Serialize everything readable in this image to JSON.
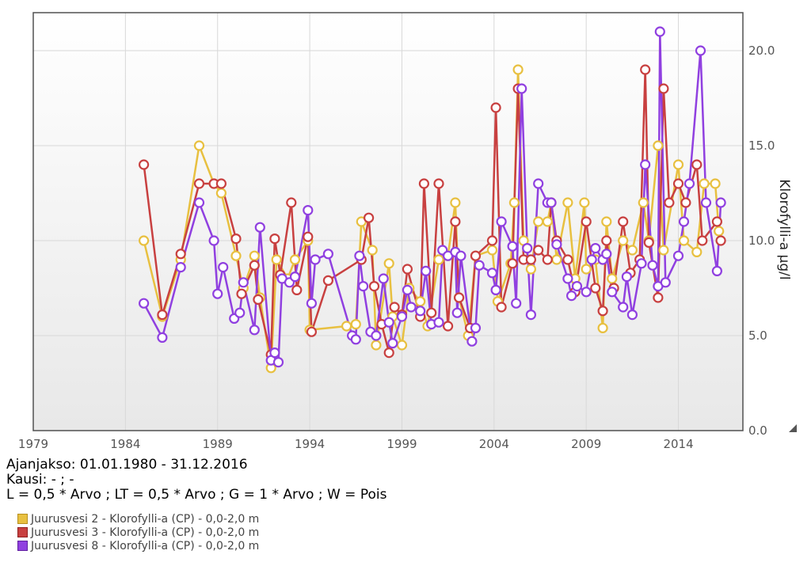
{
  "chart_data": {
    "type": "line",
    "xlim": [
      1979,
      2017.5
    ],
    "ylim": [
      0,
      22
    ],
    "x_ticks": [
      1979,
      1984,
      1989,
      1994,
      1999,
      2004,
      2009,
      2014
    ],
    "y_ticks": [
      0,
      5,
      10,
      15,
      20
    ],
    "x_tick_labels": [
      "1979",
      "1984",
      "1989",
      "1994",
      "1999",
      "2004",
      "2009",
      "2014"
    ],
    "y_tick_labels": [
      "0.0",
      "5.0",
      "10.0",
      "15.0",
      "20.0"
    ],
    "ylabel": "Klorofylli-a µg/l",
    "grid": true,
    "series": [
      {
        "name": "Juurusvesi 2 - Klorofylli-a (CP) - 0,0-2,0 m",
        "color": "#e8c040",
        "points": [
          [
            1985.0,
            10.0
          ],
          [
            1986.0,
            6.0
          ],
          [
            1987.0,
            9.0
          ],
          [
            1988.0,
            15.0
          ],
          [
            1988.8,
            13.0
          ],
          [
            1989.2,
            12.5
          ],
          [
            1990.0,
            9.2
          ],
          [
            1990.4,
            7.5
          ],
          [
            1991.0,
            9.2
          ],
          [
            1991.3,
            7.0
          ],
          [
            1991.9,
            3.3
          ],
          [
            1992.2,
            9.0
          ],
          [
            1992.8,
            8.0
          ],
          [
            1993.2,
            9.0
          ],
          [
            1993.9,
            10.0
          ],
          [
            1994.0,
            5.3
          ],
          [
            1996.0,
            5.5
          ],
          [
            1996.5,
            5.6
          ],
          [
            1996.8,
            11.0
          ],
          [
            1997.4,
            9.5
          ],
          [
            1997.6,
            4.5
          ],
          [
            1998.3,
            8.8
          ],
          [
            1998.5,
            6.0
          ],
          [
            1999.0,
            4.5
          ],
          [
            1999.4,
            7.5
          ],
          [
            2000.0,
            6.8
          ],
          [
            2000.4,
            5.5
          ],
          [
            2001.0,
            9.0
          ],
          [
            2001.5,
            9.2
          ],
          [
            2001.9,
            12.0
          ],
          [
            2002.1,
            7.0
          ],
          [
            2002.6,
            5.0
          ],
          [
            2003.0,
            9.2
          ],
          [
            2003.9,
            9.5
          ],
          [
            2004.2,
            6.8
          ],
          [
            2004.9,
            8.8
          ],
          [
            2005.1,
            12.0
          ],
          [
            2005.3,
            19.0
          ],
          [
            2005.6,
            10.0
          ],
          [
            2006.0,
            8.5
          ],
          [
            2006.4,
            11.0
          ],
          [
            2006.9,
            11.0
          ],
          [
            2007.1,
            12.0
          ],
          [
            2007.4,
            9.0
          ],
          [
            2008.0,
            12.0
          ],
          [
            2008.4,
            8.0
          ],
          [
            2008.9,
            12.0
          ],
          [
            2009.0,
            8.5
          ],
          [
            2009.5,
            9.0
          ],
          [
            2009.9,
            5.4
          ],
          [
            2010.1,
            11.0
          ],
          [
            2010.4,
            8.0
          ],
          [
            2011.0,
            10.0
          ],
          [
            2011.5,
            9.5
          ],
          [
            2012.1,
            12.0
          ],
          [
            2012.4,
            10.0
          ],
          [
            2012.9,
            15.0
          ],
          [
            2013.2,
            9.5
          ],
          [
            2014.0,
            14.0
          ],
          [
            2014.3,
            10.0
          ],
          [
            2015.0,
            9.4
          ],
          [
            2015.4,
            13.0
          ],
          [
            2016.0,
            13.0
          ],
          [
            2016.2,
            10.5
          ]
        ]
      },
      {
        "name": "Juurusvesi 3 - Klorofylli-a (CP) - 0,0-2,0 m",
        "color": "#c84040",
        "points": [
          [
            1985.0,
            14.0
          ],
          [
            1986.0,
            6.1
          ],
          [
            1987.0,
            9.3
          ],
          [
            1988.0,
            13.0
          ],
          [
            1988.8,
            13.0
          ],
          [
            1989.2,
            13.0
          ],
          [
            1990.0,
            10.1
          ],
          [
            1990.3,
            7.2
          ],
          [
            1991.0,
            8.7
          ],
          [
            1991.2,
            6.9
          ],
          [
            1991.9,
            4.0
          ],
          [
            1992.1,
            10.1
          ],
          [
            1992.4,
            8.2
          ],
          [
            1993.0,
            12.0
          ],
          [
            1993.3,
            7.4
          ],
          [
            1993.9,
            10.2
          ],
          [
            1994.1,
            5.2
          ],
          [
            1995.0,
            7.9
          ],
          [
            1996.8,
            9.0
          ],
          [
            1997.2,
            11.2
          ],
          [
            1997.5,
            7.6
          ],
          [
            1997.9,
            5.6
          ],
          [
            1998.3,
            4.1
          ],
          [
            1998.6,
            6.5
          ],
          [
            1999.0,
            6.1
          ],
          [
            1999.3,
            8.5
          ],
          [
            2000.0,
            6.0
          ],
          [
            2000.2,
            13.0
          ],
          [
            2000.6,
            6.2
          ],
          [
            2001.0,
            13.0
          ],
          [
            2001.5,
            5.5
          ],
          [
            2001.9,
            11.0
          ],
          [
            2002.1,
            7.0
          ],
          [
            2002.7,
            5.4
          ],
          [
            2003.0,
            9.2
          ],
          [
            2003.9,
            10.0
          ],
          [
            2004.1,
            17.0
          ],
          [
            2004.4,
            6.5
          ],
          [
            2005.0,
            8.8
          ],
          [
            2005.3,
            18.0
          ],
          [
            2005.6,
            9.0
          ],
          [
            2006.0,
            9.0
          ],
          [
            2006.4,
            9.5
          ],
          [
            2006.9,
            9.0
          ],
          [
            2007.1,
            12.0
          ],
          [
            2007.4,
            10.0
          ],
          [
            2008.0,
            9.0
          ],
          [
            2008.4,
            7.3
          ],
          [
            2009.0,
            11.0
          ],
          [
            2009.5,
            7.5
          ],
          [
            2009.9,
            6.3
          ],
          [
            2010.1,
            10.0
          ],
          [
            2010.5,
            7.5
          ],
          [
            2011.0,
            11.0
          ],
          [
            2011.4,
            8.3
          ],
          [
            2011.9,
            9.0
          ],
          [
            2012.2,
            19.0
          ],
          [
            2012.4,
            9.9
          ],
          [
            2012.9,
            7.0
          ],
          [
            2013.2,
            18.0
          ],
          [
            2013.5,
            12.0
          ],
          [
            2014.0,
            13.0
          ],
          [
            2014.4,
            12.0
          ],
          [
            2015.0,
            14.0
          ],
          [
            2015.3,
            10.0
          ],
          [
            2016.1,
            11.0
          ],
          [
            2016.3,
            10.0
          ]
        ]
      },
      {
        "name": "Juurusvesi 8 - Klorofylli-a (CP) - 0,0-2,0 m",
        "color": "#9040e0",
        "points": [
          [
            1985.0,
            6.7
          ],
          [
            1986.0,
            4.9
          ],
          [
            1987.0,
            8.6
          ],
          [
            1988.0,
            12.0
          ],
          [
            1988.8,
            10.0
          ],
          [
            1989.0,
            7.2
          ],
          [
            1989.3,
            8.6
          ],
          [
            1989.9,
            5.9
          ],
          [
            1990.2,
            6.2
          ],
          [
            1990.4,
            7.8
          ],
          [
            1991.0,
            5.3
          ],
          [
            1991.3,
            10.7
          ],
          [
            1991.9,
            3.7
          ],
          [
            1992.1,
            4.1
          ],
          [
            1992.3,
            3.6
          ],
          [
            1992.5,
            8.0
          ],
          [
            1992.9,
            7.8
          ],
          [
            1993.2,
            8.1
          ],
          [
            1993.9,
            11.6
          ],
          [
            1994.1,
            6.7
          ],
          [
            1994.3,
            9.0
          ],
          [
            1995.0,
            9.3
          ],
          [
            1996.3,
            5.0
          ],
          [
            1996.5,
            4.8
          ],
          [
            1996.7,
            9.2
          ],
          [
            1996.9,
            7.6
          ],
          [
            1997.3,
            5.2
          ],
          [
            1997.6,
            5.0
          ],
          [
            1998.0,
            8.0
          ],
          [
            1998.3,
            5.7
          ],
          [
            1998.5,
            4.6
          ],
          [
            1999.0,
            6.0
          ],
          [
            1999.3,
            7.4
          ],
          [
            1999.5,
            6.5
          ],
          [
            2000.0,
            6.3
          ],
          [
            2000.3,
            8.4
          ],
          [
            2000.6,
            5.6
          ],
          [
            2001.0,
            5.7
          ],
          [
            2001.2,
            9.5
          ],
          [
            2001.5,
            9.2
          ],
          [
            2001.9,
            9.4
          ],
          [
            2002.0,
            6.2
          ],
          [
            2002.2,
            9.2
          ],
          [
            2002.8,
            4.7
          ],
          [
            2003.0,
            5.4
          ],
          [
            2003.2,
            8.7
          ],
          [
            2003.9,
            8.3
          ],
          [
            2004.1,
            7.4
          ],
          [
            2004.4,
            11.0
          ],
          [
            2005.0,
            9.7
          ],
          [
            2005.2,
            6.7
          ],
          [
            2005.5,
            18.0
          ],
          [
            2005.8,
            9.6
          ],
          [
            2006.0,
            6.1
          ],
          [
            2006.4,
            13.0
          ],
          [
            2006.9,
            12.0
          ],
          [
            2007.1,
            12.0
          ],
          [
            2007.4,
            9.8
          ],
          [
            2008.0,
            8.0
          ],
          [
            2008.2,
            7.1
          ],
          [
            2008.5,
            7.6
          ],
          [
            2009.0,
            7.3
          ],
          [
            2009.3,
            9.0
          ],
          [
            2009.5,
            9.6
          ],
          [
            2009.9,
            9.0
          ],
          [
            2010.1,
            9.3
          ],
          [
            2010.4,
            7.3
          ],
          [
            2011.0,
            6.5
          ],
          [
            2011.2,
            8.1
          ],
          [
            2011.5,
            6.1
          ],
          [
            2012.0,
            8.8
          ],
          [
            2012.2,
            14.0
          ],
          [
            2012.6,
            8.7
          ],
          [
            2012.9,
            7.6
          ],
          [
            2013.0,
            21.0
          ],
          [
            2013.3,
            7.8
          ],
          [
            2014.0,
            9.2
          ],
          [
            2014.3,
            11.0
          ],
          [
            2014.6,
            13.0
          ],
          [
            2015.2,
            20.0
          ],
          [
            2015.5,
            12.0
          ],
          [
            2016.1,
            8.4
          ],
          [
            2016.3,
            12.0
          ]
        ]
      }
    ]
  },
  "info": {
    "period": "Ajanjakso: 01.01.1980 - 31.12.2016",
    "season": "Kausi: - ; -",
    "rules": "L = 0,5 * Arvo ; LT = 0,5 * Arvo ; G = 1 * Arvo ; W = Pois"
  }
}
